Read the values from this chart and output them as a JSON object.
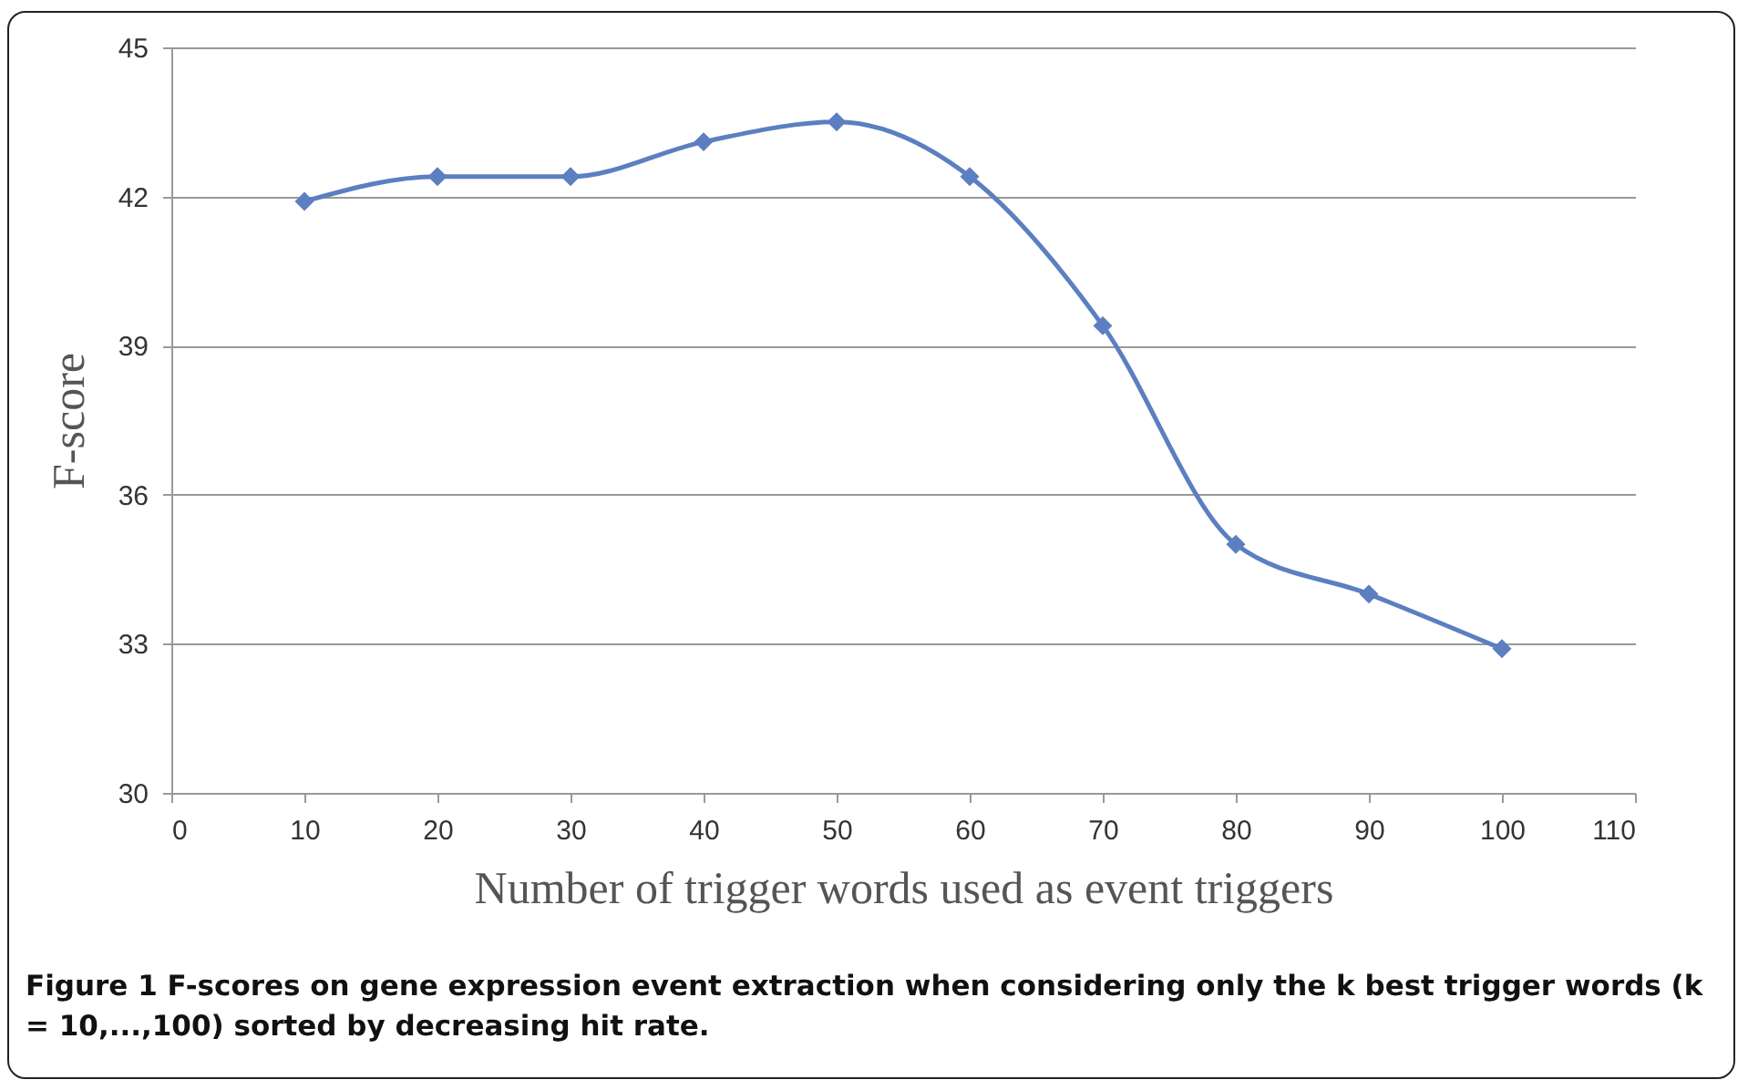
{
  "chart_data": {
    "type": "line",
    "xlabel": "Number of trigger words used as event triggers",
    "ylabel": "F-score",
    "x": [
      10,
      20,
      30,
      40,
      50,
      60,
      70,
      80,
      90,
      100
    ],
    "series": [
      {
        "color": "#5b7fc0",
        "values": [
          41.9,
          42.4,
          42.4,
          43.1,
          43.5,
          42.4,
          39.4,
          35.0,
          34.0,
          32.9
        ]
      }
    ],
    "xlim": [
      0,
      110
    ],
    "xticks": [
      0,
      10,
      20,
      30,
      40,
      50,
      60,
      70,
      80,
      90,
      100,
      110
    ],
    "ylim": [
      30,
      45
    ],
    "yticks": [
      30,
      33,
      36,
      39,
      42,
      45
    ],
    "grid": "y",
    "marker": "diamond",
    "line_style": "solid",
    "annotations": [
      "Figure 1 F-scores on gene expression event extraction when considering only the k best trigger words (k = 10,...,100) sorted by decreasing hit rate."
    ]
  }
}
